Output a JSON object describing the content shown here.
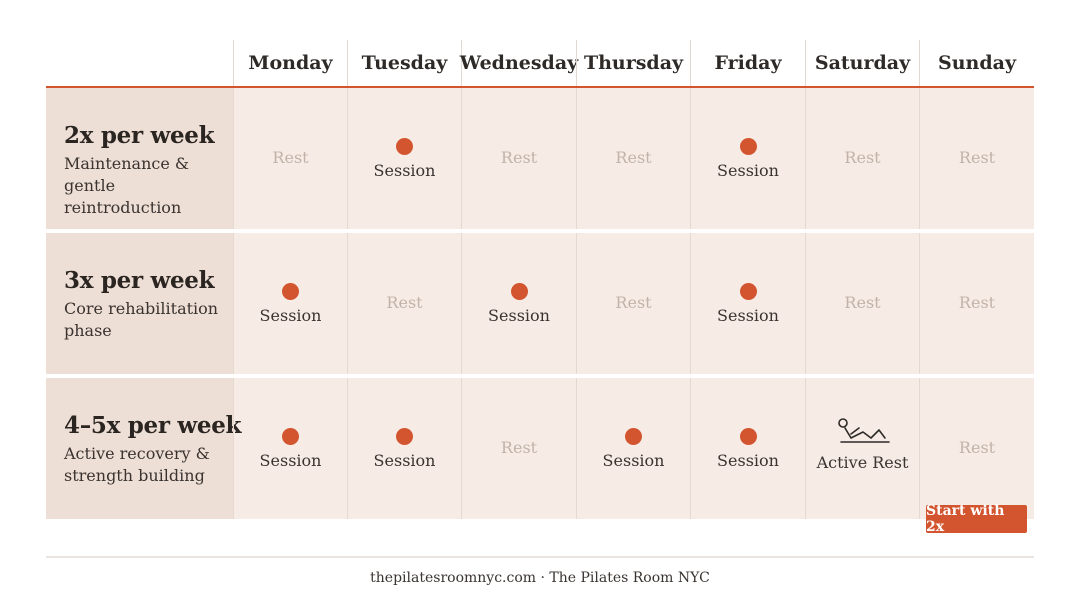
{
  "days": [
    "Monday",
    "Tuesday",
    "Wednesday",
    "Thursday",
    "Friday",
    "Saturday",
    "Sunday"
  ],
  "rows": [
    {
      "frequency": "2x per week",
      "description": "Maintenance & gentle reintroduction",
      "cells": [
        "Rest",
        "Session",
        "Rest",
        "Rest",
        "Session",
        "Rest",
        "Rest"
      ]
    },
    {
      "frequency": "3x per week",
      "description": "Core rehabilitation phase",
      "cells": [
        "Session",
        "Rest",
        "Session",
        "Rest",
        "Session",
        "Rest",
        "Rest"
      ]
    },
    {
      "frequency": "4–5x per week",
      "description": "Active recovery & strength building",
      "cells": [
        "Session",
        "Session",
        "Rest",
        "Session",
        "Session",
        "Active Rest",
        "Rest"
      ]
    }
  ],
  "badge": "Start with 2x",
  "footer": "thepilatesroomnyc.com · The Pilates Room NYC",
  "colors": {
    "accent": "#d3552f",
    "row_bg": "#f6ece5",
    "label_bg": "#eedfd6",
    "rest_text": "#c2b3a9"
  },
  "icons": {
    "session": "session-dot-icon",
    "active_rest": "reclining-figure-icon"
  }
}
